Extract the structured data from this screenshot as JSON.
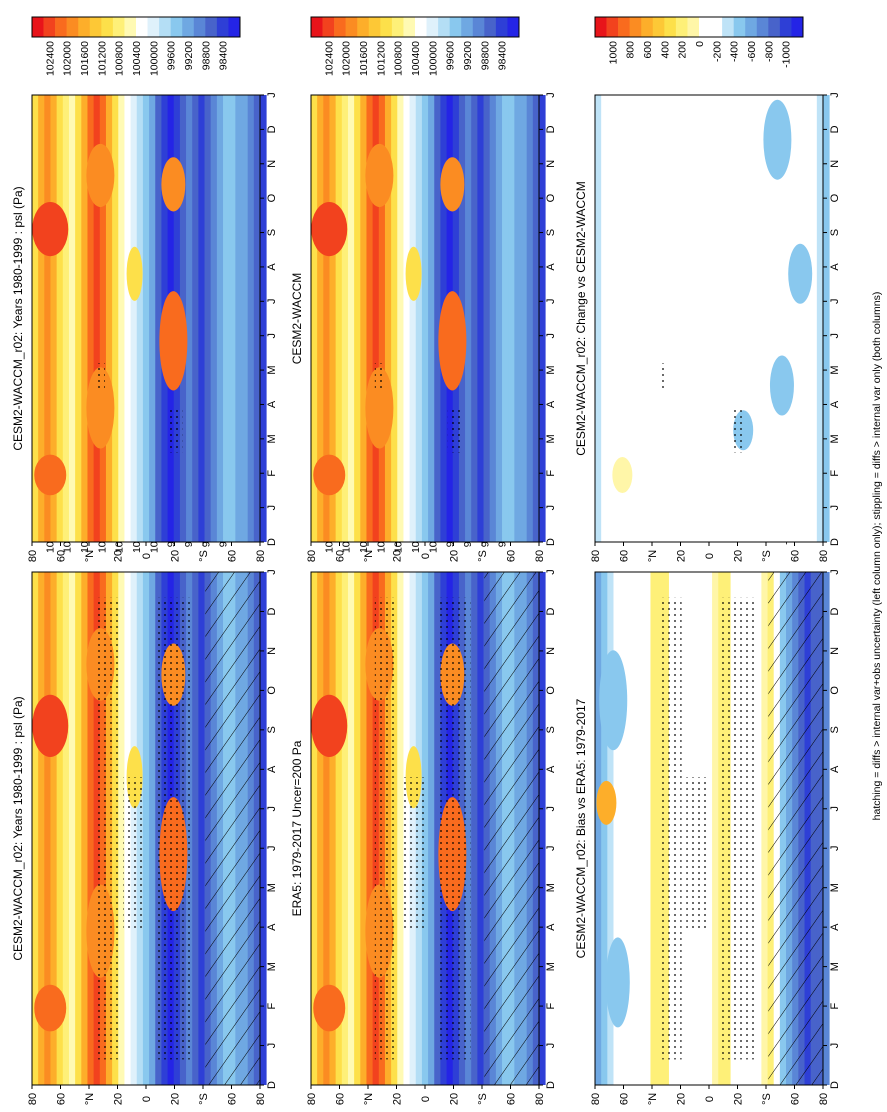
{
  "figure": {
    "footer_note": "hatching = diffs > internal var+obs uncertainty (left column only); stippling = diffs > internal var only (both columns)"
  },
  "chart_data": [
    {
      "type": "heatmap",
      "title": "CESM2-WACCM_r02: Years 1980-1999 : psl (Pa)",
      "x": [
        "D",
        "J",
        "F",
        "M",
        "A",
        "M",
        "J",
        "J",
        "A",
        "S",
        "O",
        "N",
        "D",
        "J"
      ],
      "y_ticks": [
        "80",
        "60",
        "°N",
        "20",
        "0",
        "20",
        "°S",
        "60",
        "80"
      ],
      "colorbar": [
        "102400",
        "102000",
        "101600",
        "101200",
        "100800",
        "100400",
        "100000",
        "99600",
        "99200",
        "98800",
        "98400"
      ],
      "stippling": true,
      "hatching": true
    },
    {
      "type": "heatmap",
      "title": "CESM2-WACCM_r02: Years 1980-1999 : psl (Pa)",
      "x": [
        "D",
        "J",
        "F",
        "M",
        "A",
        "M",
        "J",
        "J",
        "A",
        "S",
        "O",
        "N",
        "D",
        "J"
      ],
      "y_ticks": [
        "80",
        "60",
        "°N",
        "20",
        "0",
        "20",
        "°S",
        "60",
        "80"
      ],
      "colorbar": [
        "102400",
        "102000",
        "101600",
        "101200",
        "100800",
        "100400",
        "100000",
        "99600",
        "99200",
        "98800",
        "98400"
      ],
      "stippling": true,
      "hatching": false
    },
    {
      "type": "heatmap",
      "title": "ERA5: 1979-2017 Uncer=200 Pa",
      "x": [
        "D",
        "J",
        "F",
        "M",
        "A",
        "M",
        "J",
        "J",
        "A",
        "S",
        "O",
        "N",
        "D",
        "J"
      ],
      "y_ticks": [
        "80",
        "60",
        "°N",
        "20",
        "0",
        "20",
        "°S",
        "60",
        "80"
      ],
      "colorbar": [
        "102400",
        "102000",
        "101600",
        "101200",
        "100800",
        "100400",
        "100000",
        "99600",
        "99200",
        "98800",
        "98400"
      ],
      "stippling": true,
      "hatching": true
    },
    {
      "type": "heatmap",
      "title": "CESM2-WACCM",
      "x": [
        "D",
        "J",
        "F",
        "M",
        "A",
        "M",
        "J",
        "J",
        "A",
        "S",
        "O",
        "N",
        "D",
        "J"
      ],
      "y_ticks": [
        "80",
        "60",
        "°N",
        "20",
        "0",
        "20",
        "°S",
        "60",
        "80"
      ],
      "colorbar": [
        "102400",
        "102000",
        "101600",
        "101200",
        "100800",
        "100400",
        "100000",
        "99600",
        "99200",
        "98800",
        "98400"
      ],
      "stippling": true,
      "hatching": false
    },
    {
      "type": "heatmap",
      "title": "CESM2-WACCM_r02: Bias vs ERA5: 1979-2017",
      "x": [
        "D",
        "J",
        "F",
        "M",
        "A",
        "M",
        "J",
        "J",
        "A",
        "S",
        "O",
        "N",
        "D",
        "J"
      ],
      "y_ticks": [
        "80",
        "60",
        "°N",
        "20",
        "0",
        "20",
        "°S",
        "60",
        "80"
      ],
      "colorbar": [
        "1000",
        "800",
        "600",
        "400",
        "200",
        "0",
        "-200",
        "-400",
        "-600",
        "-800",
        "-1000"
      ],
      "stippling": true,
      "hatching": true
    },
    {
      "type": "heatmap",
      "title": "CESM2-WACCM_r02: Change vs CESM2-WACCM",
      "x": [
        "D",
        "J",
        "F",
        "M",
        "A",
        "M",
        "J",
        "J",
        "A",
        "S",
        "O",
        "N",
        "D",
        "J"
      ],
      "y_ticks": [
        "80",
        "60",
        "°N",
        "20",
        "0",
        "20",
        "°S",
        "60",
        "80"
      ],
      "colorbar": [
        "1000",
        "800",
        "600",
        "400",
        "200",
        "0",
        "-200",
        "-400",
        "-600",
        "-800",
        "-1000"
      ],
      "stippling": true,
      "hatching": false
    }
  ],
  "colors": {
    "abs": [
      "#e8141a",
      "#f2421e",
      "#f96b1e",
      "#fb8c22",
      "#fdae2a",
      "#fdc836",
      "#fde04a",
      "#fef078",
      "#fffab4",
      "#ffffff",
      "#dff1fb",
      "#b4def5",
      "#89c8ee",
      "#6fa8e2",
      "#5a86d6",
      "#4863ca",
      "#2e3fd6",
      "#2424e6"
    ],
    "diff": [
      "#e8141a",
      "#f2421e",
      "#f96b1e",
      "#fb8c22",
      "#fdae2a",
      "#fdc836",
      "#fde04a",
      "#fef078",
      "#fff6a8",
      "#ffffff",
      "#ffffff",
      "#bfe3f7",
      "#89c8ee",
      "#6fa8e2",
      "#5a86d6",
      "#4863ca",
      "#2e3fd6",
      "#2424e6"
    ]
  }
}
